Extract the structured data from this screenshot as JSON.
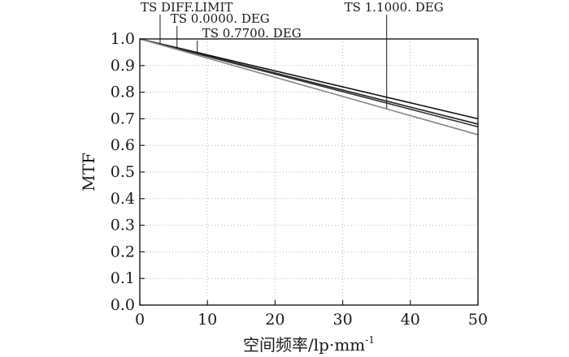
{
  "chart_data": {
    "type": "line",
    "xlabel": "空间频率/lp·mm",
    "xlabel_superscript": "-1",
    "ylabel": "MTF",
    "xlim": [
      0,
      50
    ],
    "ylim": [
      0,
      1.0
    ],
    "xticks": [
      0,
      10,
      20,
      30,
      40,
      50
    ],
    "xtick_labels": [
      "0",
      "10",
      "20",
      "30",
      "40",
      "50"
    ],
    "yticks": [
      0,
      0.1,
      0.2,
      0.3,
      0.4,
      0.5,
      0.6,
      0.7,
      0.8,
      0.9,
      1.0
    ],
    "ytick_labels": [
      "0.0",
      "0.1",
      "0.2",
      "0.3",
      "0.4",
      "0.5",
      "0.6",
      "0.7",
      "0.8",
      "0.9",
      "1.0"
    ],
    "grid": true,
    "series": [
      {
        "name": "TS DIFF.LIMIT",
        "color": "#111111",
        "x": [
          0,
          50
        ],
        "y": [
          1.0,
          0.7
        ],
        "label_at_x": 3
      },
      {
        "name": "TS 0.0000. DEG",
        "color": "#222222",
        "x": [
          0,
          50
        ],
        "y": [
          1.0,
          0.68
        ],
        "label_at_x": 5.5
      },
      {
        "name": "TS 0.7700. DEG",
        "color": "#333333",
        "x": [
          0,
          50
        ],
        "y": [
          1.0,
          0.67
        ],
        "label_at_x": 8.5
      },
      {
        "name": "TS 1.1000. DEG",
        "color": "#888888",
        "x": [
          0,
          50
        ],
        "y": [
          1.0,
          0.64
        ],
        "label_at_x": 36.5
      }
    ]
  }
}
